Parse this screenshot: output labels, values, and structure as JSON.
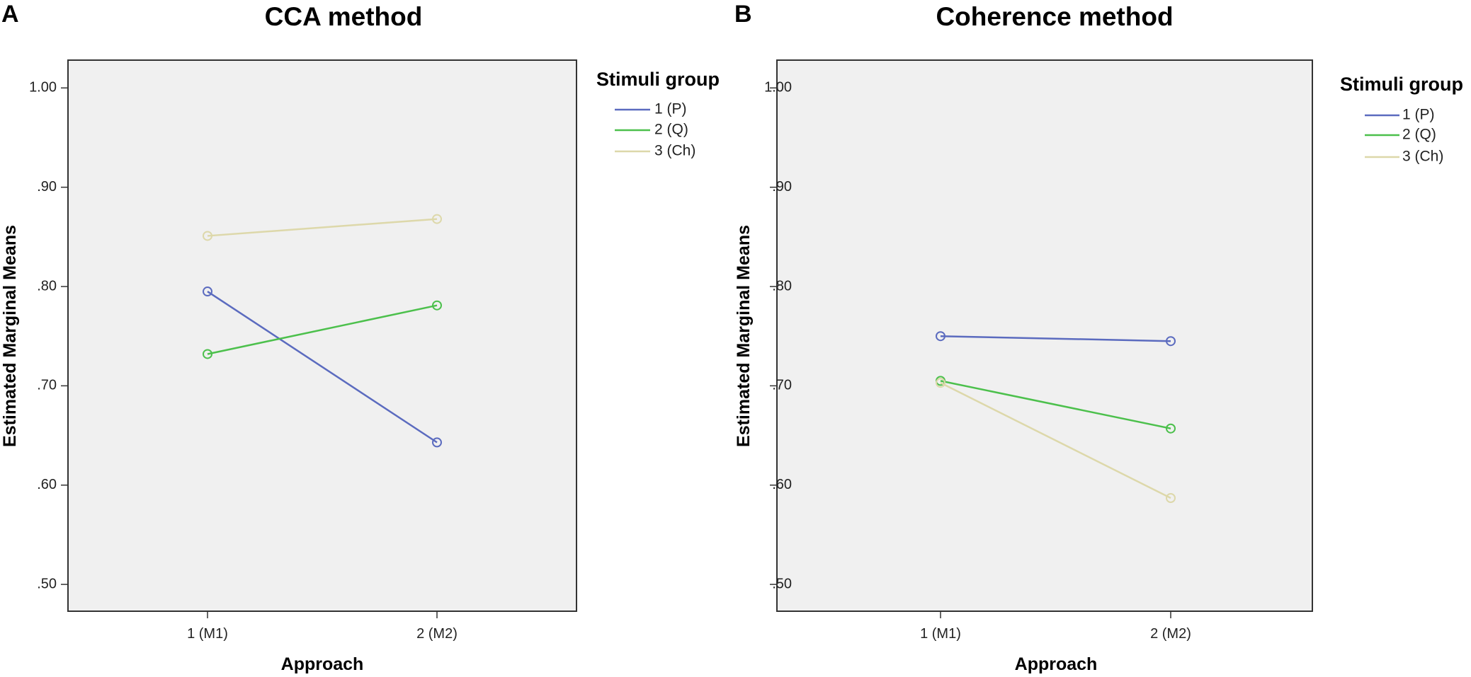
{
  "chart_data": [
    {
      "type": "line",
      "panel_label": "A",
      "title": "CCA method",
      "xlabel": "Approach",
      "ylabel": "Estimated Marginal Means",
      "categories": [
        "1 (M1)",
        "2 (M2)"
      ],
      "ylim": [
        0.473,
        1.028
      ],
      "yticks": [
        0.5,
        0.6,
        0.7,
        0.8,
        0.9,
        1.0
      ],
      "ytick_labels": [
        ".50",
        ".60",
        ".70",
        ".80",
        ".90",
        "1.00"
      ],
      "grid": false,
      "legend": {
        "title": "Stimuli group",
        "position": "right"
      },
      "series": [
        {
          "name": "1 (P)",
          "values": [
            0.795,
            0.643
          ],
          "color": "#5b6bbf"
        },
        {
          "name": "2 (Q)",
          "values": [
            0.732,
            0.781
          ],
          "color": "#4cc04c"
        },
        {
          "name": "3 (Ch)",
          "values": [
            0.851,
            0.868
          ],
          "color": "#ddd8aa"
        }
      ]
    },
    {
      "type": "line",
      "panel_label": "B",
      "title": "Coherence method",
      "xlabel": "Approach",
      "ylabel": "Estimated Marginal Means",
      "categories": [
        "1 (M1)",
        "2 (M2)"
      ],
      "ylim": [
        0.473,
        1.028
      ],
      "yticks": [
        0.5,
        0.6,
        0.7,
        0.8,
        0.9,
        1.0
      ],
      "ytick_labels": [
        ".50",
        ".60",
        ".70",
        ".80",
        ".90",
        "1.00"
      ],
      "grid": false,
      "legend": {
        "title": "Stimuli group",
        "position": "right"
      },
      "series": [
        {
          "name": "1 (P)",
          "values": [
            0.75,
            0.745
          ],
          "color": "#5b6bbf"
        },
        {
          "name": "2 (Q)",
          "values": [
            0.705,
            0.657
          ],
          "color": "#4cc04c"
        },
        {
          "name": "3 (Ch)",
          "values": [
            0.703,
            0.587
          ],
          "color": "#ddd8aa"
        }
      ]
    }
  ]
}
